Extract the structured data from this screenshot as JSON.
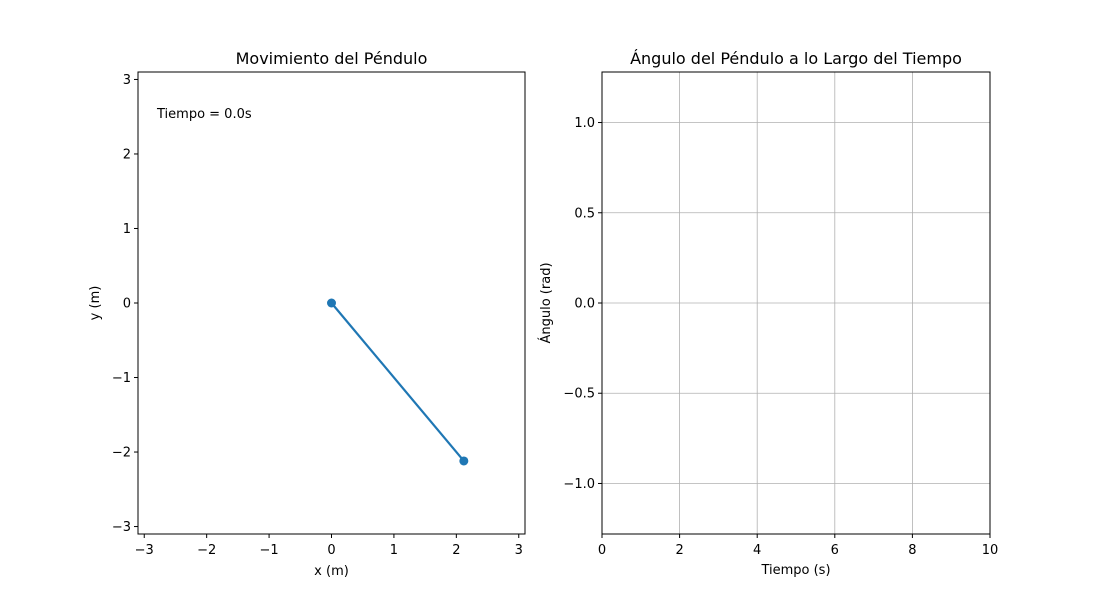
{
  "chart_data": [
    {
      "type": "line",
      "title": "Movimiento del Péndulo",
      "xlabel": "x (m)",
      "ylabel": "y (m)",
      "xlim": [
        -3.1,
        3.1
      ],
      "ylim": [
        -3.1,
        3.1
      ],
      "xticks": [
        -3,
        -2,
        -1,
        0,
        1,
        2,
        3
      ],
      "xtick_labels": [
        "−3",
        "−2",
        "−1",
        "0",
        "1",
        "2",
        "3"
      ],
      "yticks": [
        -3,
        -2,
        -1,
        0,
        1,
        2,
        3
      ],
      "ytick_labels": [
        "−3",
        "−2",
        "−1",
        "0",
        "1",
        "2",
        "3"
      ],
      "grid": false,
      "annotation": "Tiempo = 0.0s",
      "series": [
        {
          "x": [
            0,
            2.12
          ],
          "y": [
            0,
            -2.12
          ],
          "color": "#1f77b4",
          "marker": "circle"
        }
      ]
    },
    {
      "type": "line",
      "title": "Ángulo del Péndulo a lo Largo del Tiempo",
      "xlabel": "Tiempo (s)",
      "ylabel": "Ángulo (rad)",
      "xlim": [
        0,
        10
      ],
      "ylim": [
        -1.28,
        1.28
      ],
      "xticks": [
        0,
        2,
        4,
        6,
        8,
        10
      ],
      "xtick_labels": [
        "0",
        "2",
        "4",
        "6",
        "8",
        "10"
      ],
      "yticks": [
        -1.0,
        -0.5,
        0.0,
        0.5,
        1.0
      ],
      "ytick_labels": [
        "−1.0",
        "−0.5",
        "0.0",
        "0.5",
        "1.0"
      ],
      "grid": true,
      "series": []
    }
  ]
}
